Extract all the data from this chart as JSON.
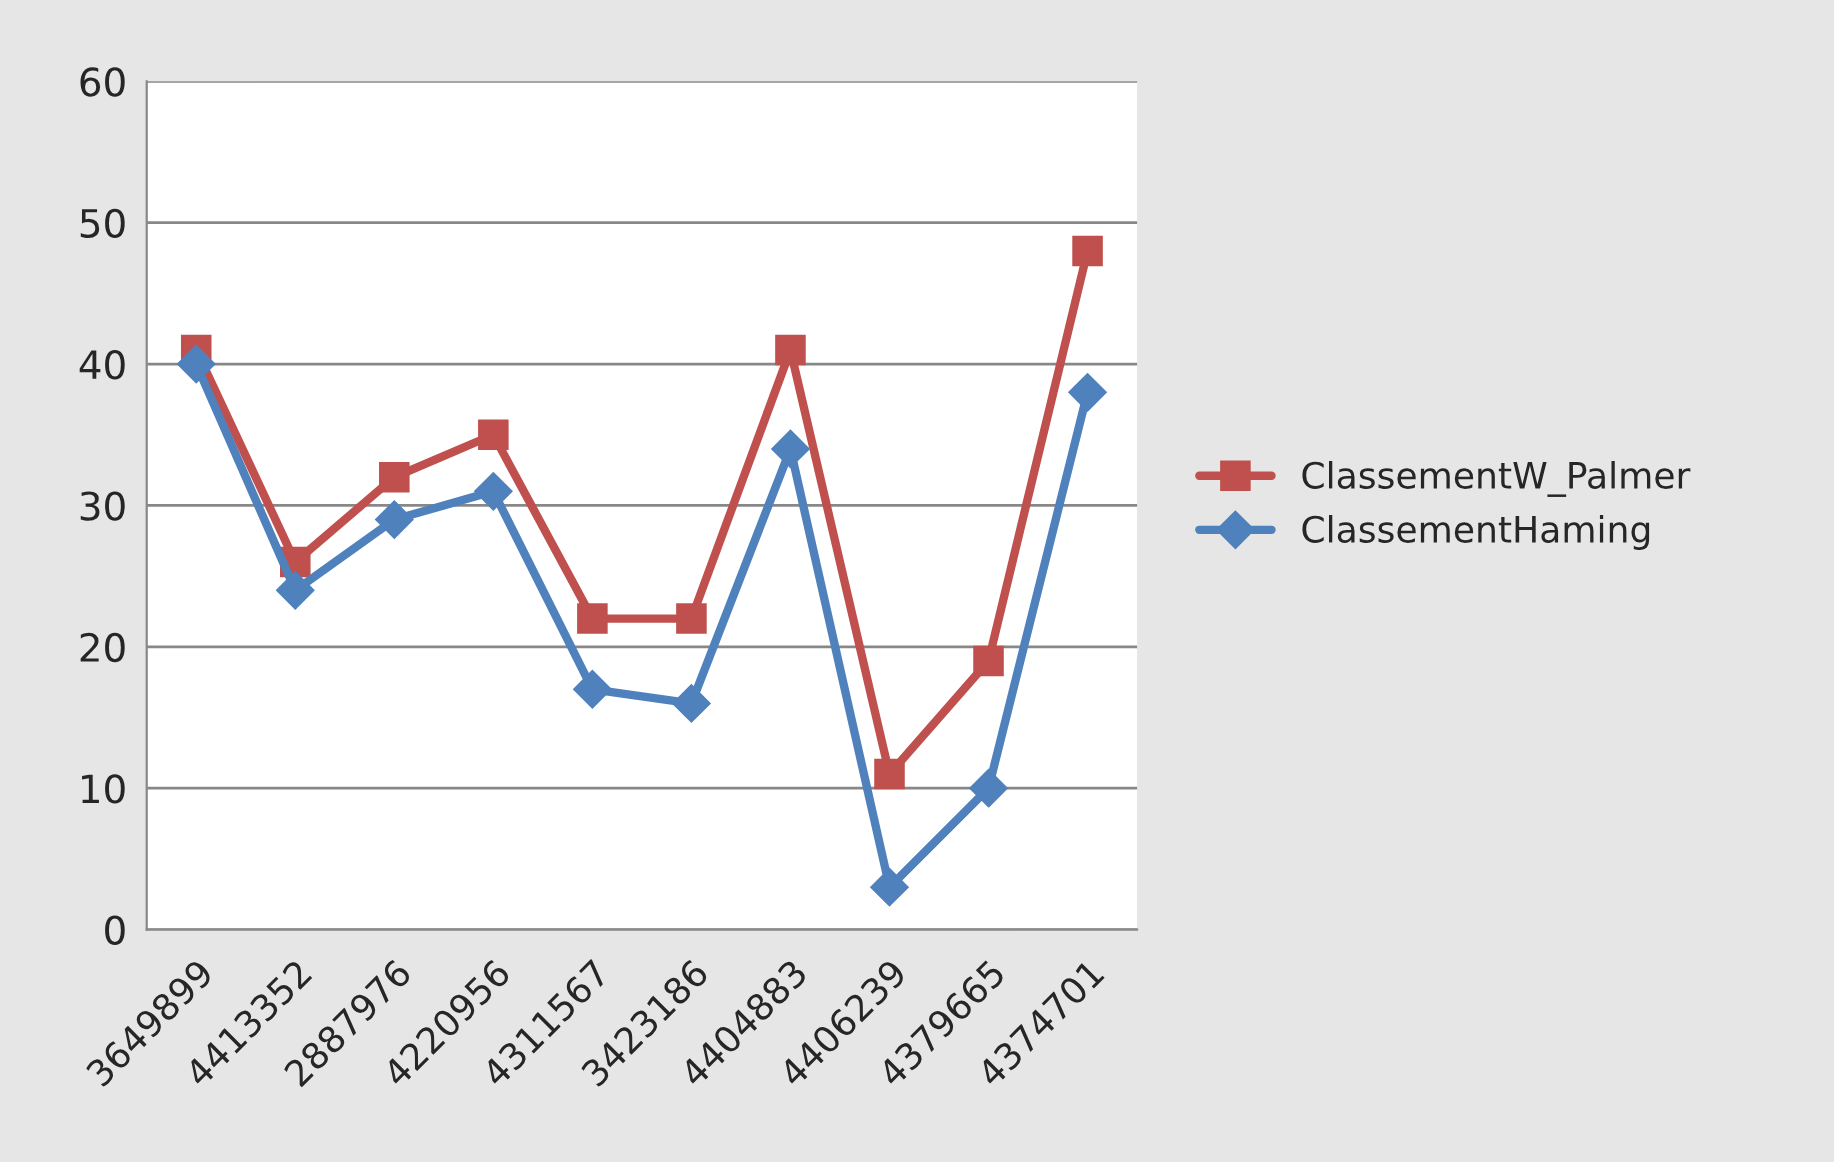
{
  "chart_data": {
    "type": "line",
    "categories": [
      "3649899",
      "4413352",
      "2887976",
      "4220956",
      "4311567",
      "3423186",
      "4404883",
      "4406239",
      "4379665",
      "4374701"
    ],
    "series": [
      {
        "name": "ClassementW_Palmer",
        "color": "#c0504d",
        "marker": "square",
        "values": [
          41,
          26,
          32,
          35,
          22,
          22,
          41,
          11,
          19,
          48
        ]
      },
      {
        "name": "ClassementHaming",
        "color": "#4f81bd",
        "marker": "diamond",
        "values": [
          40,
          24,
          29,
          31,
          17,
          16,
          34,
          3,
          10,
          38
        ]
      }
    ],
    "ylim": [
      0,
      60
    ],
    "yticks": [
      0,
      10,
      20,
      30,
      40,
      50,
      60
    ],
    "grid": "y",
    "legend": "right",
    "line_style": "solid"
  }
}
